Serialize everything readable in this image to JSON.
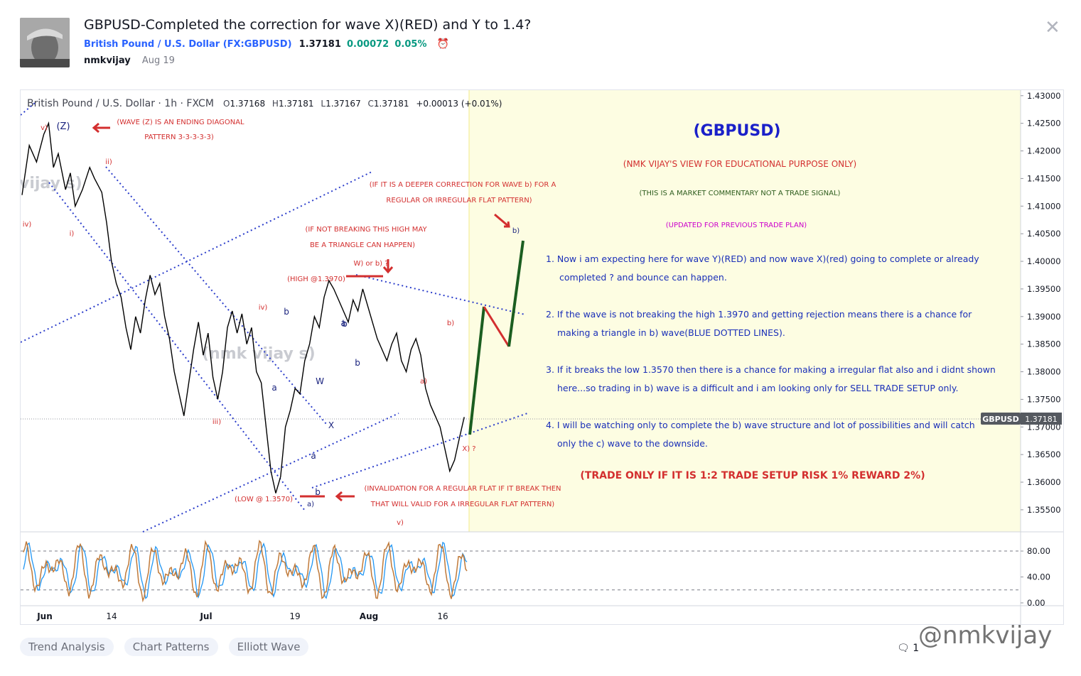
{
  "header": {
    "title": "GBPUSD-Completed the correction for wave X)(RED) and Y to 1.4?",
    "symbol_name": "British Pound / U.S. Dollar (FX:GBPUSD)",
    "price": "1.37181",
    "change": "0.00072",
    "change_pct": "0.05%",
    "author": "nmkvijay",
    "date": "Aug 19",
    "alarm_icon": "alarm-clock-icon",
    "close_icon": "close-icon"
  },
  "legend": {
    "symbol": "British Pound / U.S. Dollar · 1h · FXCM",
    "o_label": "O",
    "o": "1.37168",
    "h_label": "H",
    "h": "1.37181",
    "l_label": "L",
    "l": "1.37167",
    "c_label": "C",
    "c": "1.37181",
    "change": "+0.00013 (+0.01%)"
  },
  "chart_data": {
    "type": "line",
    "symbol": "GBPUSD",
    "timeframe": "1h",
    "ylim": [
      1.351,
      1.431
    ],
    "y_ticks": [
      "1.43000",
      "1.42500",
      "1.42000",
      "1.41500",
      "1.41000",
      "1.40500",
      "1.40000",
      "1.39500",
      "1.39000",
      "1.38500",
      "1.38000",
      "1.37500",
      "1.37000",
      "1.36500",
      "1.36000",
      "1.35500"
    ],
    "x_ticks": [
      "Jun",
      "14",
      "Jul",
      "19",
      "Aug",
      "16"
    ],
    "last_price_badge": "GBPUSD",
    "last_price": "1.37181",
    "price_path": [
      [
        0,
        1.412
      ],
      [
        3,
        1.421
      ],
      [
        6,
        1.418
      ],
      [
        9,
        1.423
      ],
      [
        11,
        1.425
      ],
      [
        13,
        1.417
      ],
      [
        15,
        1.4195
      ],
      [
        18,
        1.413
      ],
      [
        20,
        1.416
      ],
      [
        22,
        1.41
      ],
      [
        25,
        1.413
      ],
      [
        28,
        1.417
      ],
      [
        30,
        1.415
      ],
      [
        33,
        1.4125
      ],
      [
        35,
        1.407
      ],
      [
        37,
        1.4
      ],
      [
        39,
        1.396
      ],
      [
        41,
        1.3935
      ],
      [
        43,
        1.388
      ],
      [
        45,
        1.384
      ],
      [
        47,
        1.39
      ],
      [
        49,
        1.387
      ],
      [
        51,
        1.393
      ],
      [
        53,
        1.3975
      ],
      [
        55,
        1.394
      ],
      [
        57,
        1.396
      ],
      [
        59,
        1.39
      ],
      [
        61,
        1.386
      ],
      [
        63,
        1.38
      ],
      [
        65,
        1.376
      ],
      [
        67,
        1.372
      ],
      [
        69,
        1.378
      ],
      [
        71,
        1.384
      ],
      [
        73,
        1.389
      ],
      [
        75,
        1.383
      ],
      [
        77,
        1.387
      ],
      [
        79,
        1.379
      ],
      [
        81,
        1.375
      ],
      [
        83,
        1.38
      ],
      [
        85,
        1.388
      ],
      [
        87,
        1.391
      ],
      [
        89,
        1.387
      ],
      [
        91,
        1.3905
      ],
      [
        93,
        1.385
      ],
      [
        95,
        1.388
      ],
      [
        97,
        1.38
      ],
      [
        99,
        1.378
      ],
      [
        101,
        1.37
      ],
      [
        103,
        1.362
      ],
      [
        105,
        1.358
      ],
      [
        107,
        1.361
      ],
      [
        109,
        1.37
      ],
      [
        111,
        1.373
      ],
      [
        113,
        1.377
      ],
      [
        115,
        1.376
      ],
      [
        117,
        1.382
      ],
      [
        119,
        1.385
      ],
      [
        121,
        1.39
      ],
      [
        123,
        1.388
      ],
      [
        125,
        1.3935
      ],
      [
        127,
        1.3965
      ],
      [
        129,
        1.395
      ],
      [
        131,
        1.393
      ],
      [
        133,
        1.391
      ],
      [
        135,
        1.389
      ],
      [
        137,
        1.393
      ],
      [
        139,
        1.391
      ],
      [
        141,
        1.395
      ],
      [
        143,
        1.392
      ],
      [
        145,
        1.389
      ],
      [
        147,
        1.386
      ],
      [
        149,
        1.384
      ],
      [
        151,
        1.382
      ],
      [
        153,
        1.385
      ],
      [
        155,
        1.387
      ],
      [
        157,
        1.382
      ],
      [
        159,
        1.38
      ],
      [
        161,
        1.384
      ],
      [
        163,
        1.386
      ],
      [
        165,
        1.383
      ],
      [
        167,
        1.377
      ],
      [
        169,
        1.374
      ],
      [
        171,
        1.372
      ],
      [
        173,
        1.37
      ],
      [
        175,
        1.366
      ],
      [
        177,
        1.362
      ],
      [
        179,
        1.364
      ],
      [
        181,
        1.368
      ],
      [
        183,
        1.3718
      ]
    ],
    "oscillator_ticks": [
      "80.00",
      "40.00",
      "0.00"
    ],
    "oscillator_levels": [
      80,
      20
    ],
    "annotations": {
      "wave_labels_red": [
        "v)",
        "ii)",
        "iv)",
        "i)",
        "iv)",
        "iii)",
        "W) or b) ?",
        "b)",
        "a)",
        "X) ?",
        "v)",
        "(LOW @ 1.3570)",
        "(HIGH @1.3970)"
      ],
      "wave_labels_blue": [
        "(Z)",
        "a",
        "b",
        "W",
        "a",
        "X",
        "b",
        "a",
        "b",
        "b)",
        "a)"
      ],
      "notes": {
        "n1a": "(WAVE (Z) IS AN ENDING DIAGONAL",
        "n1b": "PATTERN 3-3-3-3-3)",
        "n2a": "(IF IT IS A DEEPER CORRECTION FOR WAVE b) FOR A",
        "n2b": "REGULAR OR IRREGULAR FLAT PATTERN)",
        "n3a": "(IF NOT BREAKING THIS HIGH MAY",
        "n3b": "BE A TRIANGLE CAN HAPPEN)",
        "n4a": "(INVALIDATION FOR A REGULAR FLAT IF IT BREAK THEN",
        "n4b": "THAT WILL VALID FOR A IRREGULAR FLAT PATTERN)"
      },
      "watermark_text": "(nmk vijay s)",
      "watermark_text2": "vijay s)"
    },
    "text_box": {
      "heading": "(GBPUSD)",
      "line1": "(NMK VIJAY'S VIEW FOR EDUCATIONAL PURPOSE ONLY)",
      "line2": "(THIS IS A MARKET COMMENTARY NOT A TRADE SIGNAL)",
      "line3": "(UPDATED FOR PREVIOUS TRADE PLAN)",
      "p1a": "1. Now i am expecting here for wave Y)(RED) and now wave X)(red) going to complete or already",
      "p1b": "completed ? and bounce can happen.",
      "p2a": "2. If the wave is not breaking the high 1.3970 and getting rejection means there is a chance for",
      "p2b": "making a triangle in b) wave(BLUE DOTTED LINES).",
      "p3a": "3. If it breaks the low 1.3570 then there is a chance for making a irregular flat also and i didnt shown",
      "p3b": "here...so trading in b) wave is a difficult and i am looking only for SELL TRADE SETUP only.",
      "p4a": "4. I will be watching only to complete the b) wave structure and lot of possibilities and will catch",
      "p4b": "only the c) wave to the downside.",
      "risk": "(TRADE ONLY IF IT IS 1:2 TRADE SETUP RISK 1% REWARD 2%)"
    },
    "colors": {
      "candles": "#000000",
      "note_red": "#d32f2f",
      "wave_blue": "#1a237e",
      "trend_blue": "#2c3ecb",
      "box_fill": "#fdfde2",
      "projection_green": "#1b5e20",
      "projection_red": "#d32f2f",
      "heading_blue": "#1a20c9",
      "text_blue": "#1a2fb8",
      "dark_green": "#2e5d1e",
      "magenta": "#cc00cc",
      "osc_orange": "#c07a3a",
      "osc_blue": "#2196f3"
    }
  },
  "tags": [
    "Trend Analysis",
    "Chart Patterns",
    "Elliott Wave"
  ],
  "footer": {
    "comments_icon": "comment-icon",
    "comments": "1",
    "watermark": "@nmkvijay"
  }
}
